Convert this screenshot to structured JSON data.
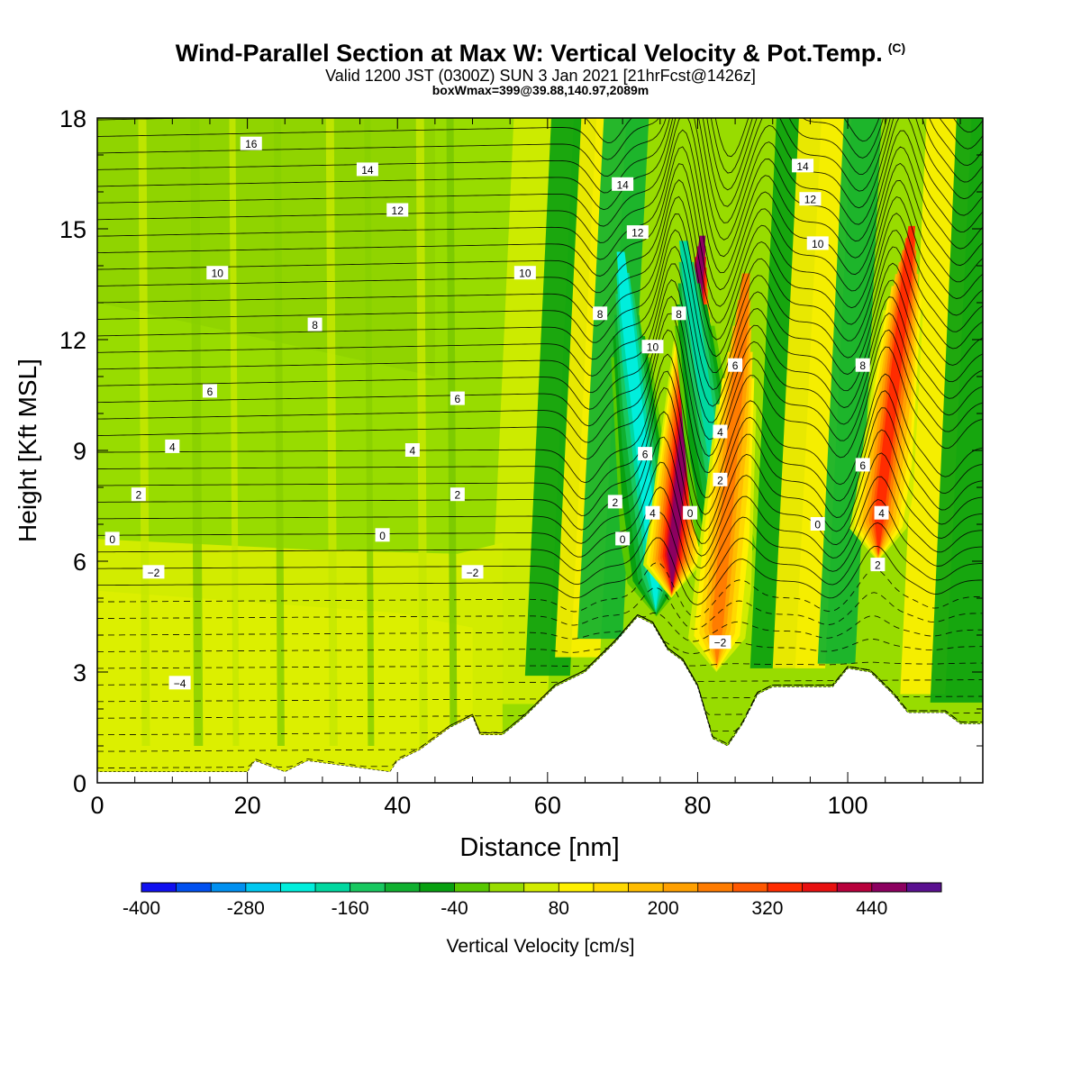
{
  "header": {
    "title": "Wind-Parallel Section at Max W: Vertical Velocity & Pot.Temp.",
    "copyright": "(C)",
    "valid": "Valid 1200 JST (0300Z) SUN 3 Jan 2021 [21hrFcst@1426z]",
    "box_info": "boxWmax=399@39.88,140.97,2089m"
  },
  "chart_data": {
    "type": "heatmap",
    "title": "Wind-Parallel Section at Max W: Vertical Velocity & Pot.Temp.",
    "xlabel": "Distance [nm]",
    "ylabel": "Height [Kft MSL]",
    "xlim": [
      0,
      118
    ],
    "ylim": [
      0,
      18
    ],
    "x_ticks": [
      0,
      20,
      40,
      60,
      80,
      100
    ],
    "y_ticks": [
      0,
      3,
      6,
      9,
      12,
      15,
      18
    ],
    "colorbar": {
      "label": "Vertical Velocity [cm/s]",
      "min": -400,
      "max": 480,
      "step": 40,
      "tick_labels": [
        -400,
        -280,
        -160,
        -40,
        80,
        200,
        320,
        440
      ],
      "colors": [
        "#1010f0",
        "#0050f0",
        "#0090f0",
        "#00c8f0",
        "#00eedc",
        "#00d8a0",
        "#18c860",
        "#10b030",
        "#08a010",
        "#58c800",
        "#98dc00",
        "#d2ec00",
        "#fff000",
        "#ffd800",
        "#ffbc00",
        "#ffa000",
        "#ff7c00",
        "#ff5800",
        "#ff2c00",
        "#e81010",
        "#b8003c",
        "#8c0060",
        "#5a1090"
      ]
    },
    "plumes": [
      {
        "x_base": 74.5,
        "y_base": 4.5,
        "x_top": 68,
        "y_top": 18,
        "w_min": -240
      },
      {
        "x_base": 76.5,
        "y_base": 5,
        "x_top": 82,
        "y_top": 18,
        "w_max": 460
      },
      {
        "x_base": 84,
        "y_base": 5.5,
        "x_top": 76,
        "y_top": 18,
        "w_min": -200
      },
      {
        "x_base": 82.5,
        "y_base": 3,
        "x_top": 88,
        "y_top": 18,
        "w_max": 250
      },
      {
        "x_base": 104,
        "y_base": 6,
        "x_top": 110,
        "y_top": 18,
        "w_max": 330
      }
    ],
    "terrain": [
      {
        "x": 0,
        "h": 0.3
      },
      {
        "x": 20,
        "h": 0.3
      },
      {
        "x": 21,
        "h": 0.6
      },
      {
        "x": 25,
        "h": 0.3
      },
      {
        "x": 28,
        "h": 0.6
      },
      {
        "x": 39,
        "h": 0.3
      },
      {
        "x": 40,
        "h": 0.6
      },
      {
        "x": 43,
        "h": 0.9
      },
      {
        "x": 47,
        "h": 1.5
      },
      {
        "x": 50,
        "h": 1.8
      },
      {
        "x": 51,
        "h": 1.3
      },
      {
        "x": 54,
        "h": 1.3
      },
      {
        "x": 57,
        "h": 1.8
      },
      {
        "x": 61,
        "h": 2.6
      },
      {
        "x": 65,
        "h": 3.0
      },
      {
        "x": 69,
        "h": 3.8
      },
      {
        "x": 72,
        "h": 4.5
      },
      {
        "x": 74,
        "h": 4.3
      },
      {
        "x": 76,
        "h": 3.6
      },
      {
        "x": 78,
        "h": 3.3
      },
      {
        "x": 80,
        "h": 2.6
      },
      {
        "x": 82,
        "h": 1.2
      },
      {
        "x": 84,
        "h": 1.0
      },
      {
        "x": 86,
        "h": 1.6
      },
      {
        "x": 88,
        "h": 2.4
      },
      {
        "x": 90,
        "h": 2.6
      },
      {
        "x": 98,
        "h": 2.6
      },
      {
        "x": 100,
        "h": 3.1
      },
      {
        "x": 103,
        "h": 3.0
      },
      {
        "x": 106,
        "h": 2.4
      },
      {
        "x": 108,
        "h": 1.9
      },
      {
        "x": 113,
        "h": 1.9
      },
      {
        "x": 115,
        "h": 1.6
      },
      {
        "x": 118,
        "h": 1.6
      }
    ],
    "isentrope_labels": [
      {
        "text": "16",
        "x": 20.5,
        "y": 17.3
      },
      {
        "text": "14",
        "x": 36,
        "y": 16.6
      },
      {
        "text": "12",
        "x": 40,
        "y": 15.5
      },
      {
        "text": "10",
        "x": 16,
        "y": 13.8
      },
      {
        "text": "8",
        "x": 29,
        "y": 12.4
      },
      {
        "text": "6",
        "x": 15,
        "y": 10.6
      },
      {
        "text": "4",
        "x": 10,
        "y": 9.1
      },
      {
        "text": "2",
        "x": 5.5,
        "y": 7.8
      },
      {
        "text": "0",
        "x": 2,
        "y": 6.6
      },
      {
        "text": "−2",
        "x": 7.5,
        "y": 5.7
      },
      {
        "text": "−4",
        "x": 11,
        "y": 2.7
      },
      {
        "text": "10",
        "x": 57,
        "y": 13.8
      },
      {
        "text": "6",
        "x": 48,
        "y": 10.4
      },
      {
        "text": "4",
        "x": 42,
        "y": 9.0
      },
      {
        "text": "2",
        "x": 48,
        "y": 7.8
      },
      {
        "text": "0",
        "x": 38,
        "y": 6.7
      },
      {
        "text": "−2",
        "x": 50,
        "y": 5.7
      },
      {
        "text": "8",
        "x": 67,
        "y": 12.7
      },
      {
        "text": "14",
        "x": 70,
        "y": 16.2
      },
      {
        "text": "12",
        "x": 72,
        "y": 14.9
      },
      {
        "text": "10",
        "x": 74,
        "y": 11.8
      },
      {
        "text": "6",
        "x": 73,
        "y": 8.9
      },
      {
        "text": "4",
        "x": 74,
        "y": 7.3
      },
      {
        "text": "2",
        "x": 69,
        "y": 7.6
      },
      {
        "text": "0",
        "x": 70,
        "y": 6.6
      },
      {
        "text": "8",
        "x": 77.5,
        "y": 12.7
      },
      {
        "text": "6",
        "x": 85,
        "y": 11.3
      },
      {
        "text": "4",
        "x": 83,
        "y": 9.5
      },
      {
        "text": "2",
        "x": 83,
        "y": 8.2
      },
      {
        "text": "0",
        "x": 79,
        "y": 7.3
      },
      {
        "text": "−2",
        "x": 83,
        "y": 3.8
      },
      {
        "text": "14",
        "x": 94,
        "y": 16.7
      },
      {
        "text": "12",
        "x": 95,
        "y": 15.8
      },
      {
        "text": "10",
        "x": 96,
        "y": 14.6
      },
      {
        "text": "8",
        "x": 102,
        "y": 11.3
      },
      {
        "text": "6",
        "x": 102,
        "y": 8.6
      },
      {
        "text": "0",
        "x": 96,
        "y": 7.0
      },
      {
        "text": "4",
        "x": 104.5,
        "y": 7.3
      },
      {
        "text": "2",
        "x": 104,
        "y": 5.9
      }
    ]
  }
}
